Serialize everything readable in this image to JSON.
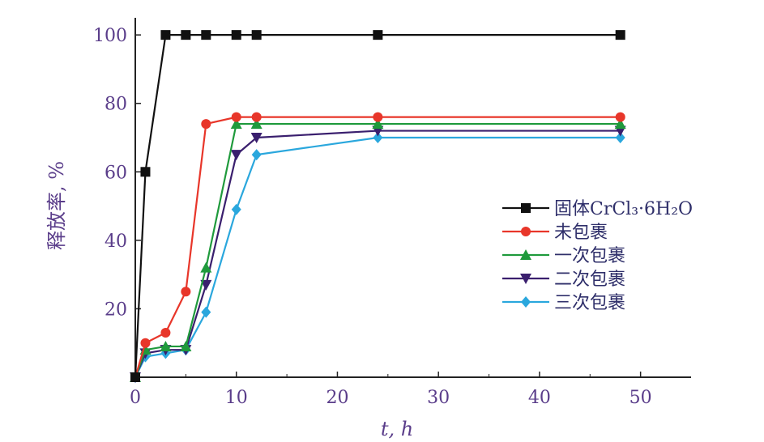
{
  "chart_data": {
    "type": "line",
    "xlabel": "t, h",
    "ylabel": "释放率, %",
    "xlim": [
      0,
      55
    ],
    "ylim": [
      0,
      105
    ],
    "xticks": [
      0,
      10,
      20,
      30,
      40,
      50
    ],
    "yticks": [
      20,
      40,
      60,
      80,
      100
    ],
    "legend_position": "right",
    "grid": false,
    "series": [
      {
        "name": "固体CrCl₃·6H₂O",
        "color": "#111111",
        "marker": "square",
        "x": [
          0,
          1,
          3,
          5,
          7,
          10,
          12,
          24,
          48
        ],
        "y": [
          0,
          60,
          100,
          100,
          100,
          100,
          100,
          100,
          100
        ]
      },
      {
        "name": "未包裹",
        "color": "#e8362a",
        "marker": "circle",
        "x": [
          0,
          1,
          3,
          5,
          7,
          10,
          12,
          24,
          48
        ],
        "y": [
          0,
          10,
          13,
          25,
          74,
          76,
          76,
          76,
          76
        ]
      },
      {
        "name": "一次包裹",
        "color": "#1f9a3c",
        "marker": "triangle-up",
        "x": [
          0,
          1,
          3,
          5,
          7,
          10,
          12,
          24,
          48
        ],
        "y": [
          0,
          8,
          9,
          9,
          32,
          74,
          74,
          74,
          74
        ]
      },
      {
        "name": "二次包裹",
        "color": "#3a1f6e",
        "marker": "triangle-down",
        "x": [
          0,
          1,
          3,
          5,
          7,
          10,
          12,
          24,
          48
        ],
        "y": [
          0,
          7,
          8,
          8,
          27,
          65,
          70,
          72,
          72
        ]
      },
      {
        "name": "三次包裹",
        "color": "#2aa7dd",
        "marker": "diamond",
        "x": [
          0,
          1,
          3,
          5,
          7,
          10,
          12,
          24,
          48
        ],
        "y": [
          0,
          6,
          7,
          8,
          19,
          49,
          65,
          70,
          70
        ]
      }
    ]
  }
}
